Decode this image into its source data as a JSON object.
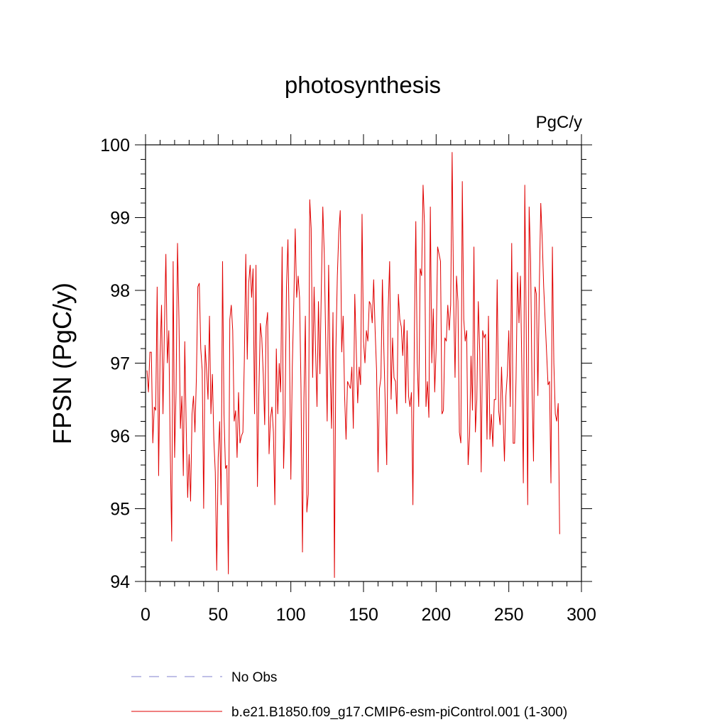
{
  "chart_data": {
    "type": "line",
    "title": "photosynthesis",
    "units_label": "PgC/y",
    "ylabel": "FPSN  (PgC/y)",
    "xlabel": "",
    "xlim": [
      0,
      300
    ],
    "ylim": [
      94,
      100
    ],
    "x_ticks": [
      0,
      50,
      100,
      150,
      200,
      250,
      300
    ],
    "x_tick_labels": [
      "0",
      "50",
      "100",
      "150",
      "200",
      "250",
      "300"
    ],
    "y_ticks": [
      94,
      95,
      96,
      97,
      98,
      99,
      100
    ],
    "y_tick_labels": [
      "94",
      "95",
      "96",
      "97",
      "98",
      "99",
      "100"
    ],
    "grid": false,
    "legend_position": "bottom",
    "series": [
      {
        "name": "No Obs",
        "color": "#8080cc",
        "dash": "dashed",
        "values": []
      },
      {
        "name": "b.e21.B1850.f09_g17.CMIP6-esm-piControl.001 (1-300)",
        "color": "#e00000",
        "dash": "solid",
        "x_start": 1,
        "values": [
          96.9,
          96.6,
          97.15,
          97.15,
          95.9,
          96.4,
          96.35,
          98.05,
          95.45,
          97.1,
          97.8,
          96.3,
          97.5,
          98.5,
          97.0,
          97.45,
          95.8,
          94.55,
          98.4,
          95.7,
          96.6,
          98.65,
          97.6,
          96.1,
          96.55,
          95.45,
          97.3,
          96.1,
          95.15,
          95.75,
          95.1,
          96.3,
          96.55,
          96.05,
          96.8,
          98.05,
          98.1,
          97.2,
          96.9,
          95.0,
          97.25,
          96.9,
          96.5,
          97.65,
          96.3,
          96.85,
          95.95,
          95.5,
          94.15,
          95.7,
          96.2,
          95.05,
          98.4,
          96.3,
          95.55,
          95.6,
          94.1,
          97.6,
          97.8,
          97.45,
          96.2,
          96.35,
          95.7,
          96.6,
          95.9,
          96.0,
          96.05,
          97.05,
          98.5,
          97.05,
          98.1,
          98.35,
          97.9,
          98.3,
          96.3,
          98.35,
          95.3,
          96.6,
          97.55,
          97.35,
          96.85,
          96.15,
          97.5,
          97.7,
          95.75,
          96.25,
          96.4,
          96.05,
          95.05,
          97.2,
          96.3,
          97.0,
          96.6,
          98.6,
          95.55,
          96.3,
          98.05,
          98.7,
          97.3,
          95.4,
          96.95,
          97.8,
          98.85,
          97.9,
          98.2,
          97.9,
          96.65,
          94.4,
          96.5,
          97.65,
          94.95,
          95.2,
          99.25,
          98.85,
          96.8,
          98.05,
          97.2,
          96.4,
          97.85,
          96.85,
          98.05,
          99.15,
          98.5,
          97.3,
          96.2,
          98.35,
          96.95,
          96.1,
          97.7,
          94.05,
          97.2,
          98.2,
          98.8,
          99.1,
          97.15,
          97.65,
          96.55,
          95.95,
          96.75,
          96.7,
          96.65,
          96.95,
          96.1,
          97.95,
          97.2,
          96.45,
          96.95,
          96.7,
          99.05,
          97.3,
          97.0,
          97.45,
          97.3,
          97.85,
          97.8,
          97.55,
          98.15,
          97.45,
          96.9,
          95.5,
          96.65,
          96.8,
          98.15,
          97.2,
          96.4,
          95.6,
          97.75,
          98.4,
          96.5,
          97.35,
          96.8,
          96.75,
          96.3,
          97.95,
          97.6,
          97.5,
          97.1,
          97.6,
          96.45,
          97.45,
          96.55,
          96.4,
          96.6,
          95.05,
          97.4,
          98.95,
          97.0,
          96.4,
          98.3,
          98.2,
          99.45,
          98.9,
          96.4,
          96.75,
          96.25,
          99.15,
          97.0,
          97.75,
          96.6,
          97.2,
          98.6,
          98.5,
          98.4,
          96.3,
          96.35,
          97.35,
          97.3,
          97.8,
          97.45,
          97.8,
          99.9,
          97.9,
          96.8,
          98.2,
          97.85,
          96.05,
          95.9,
          99.5,
          97.6,
          97.3,
          97.45,
          95.6,
          96.0,
          97.1,
          96.35,
          98.6,
          96.05,
          96.5,
          97.85,
          97.15,
          95.5,
          97.45,
          97.35,
          97.4,
          95.95,
          97.65,
          95.95,
          96.3,
          95.85,
          96.5,
          96.5,
          98.15,
          96.35,
          96.15,
          96.95,
          96.3,
          95.65,
          96.55,
          96.85,
          97.45,
          96.4,
          98.65,
          95.9,
          95.9,
          96.8,
          98.25,
          97.55,
          98.2,
          96.9,
          95.35,
          99.45,
          97.45,
          95.05,
          99.15,
          98.4,
          96.65,
          95.65,
          98.05,
          97.95,
          96.55,
          98.05,
          99.2,
          98.7,
          98.05,
          97.6,
          97.15,
          96.7,
          96.75,
          95.35,
          98.6,
          97.0,
          96.3,
          96.2,
          96.45,
          94.65
        ]
      }
    ]
  }
}
